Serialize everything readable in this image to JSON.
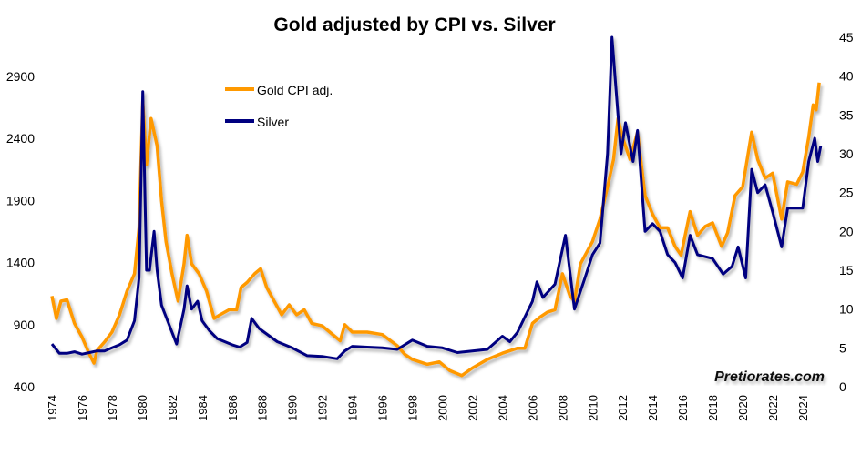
{
  "chart_data": {
    "type": "line",
    "title": "Gold adjusted by CPI vs. Silver",
    "xlabel": "",
    "ylabel_left": "",
    "ylabel_right": "",
    "x_ticks": [
      "1974",
      "1976",
      "1978",
      "1980",
      "1982",
      "1984",
      "1986",
      "1988",
      "1990",
      "1992",
      "1994",
      "1996",
      "1998",
      "2000",
      "2002",
      "2004",
      "2006",
      "2008",
      "2010",
      "2012",
      "2014",
      "2016",
      "2018",
      "2020",
      "2022",
      "2024"
    ],
    "y_left_ticks": [
      "400",
      "900",
      "1400",
      "1900",
      "2400",
      "2900"
    ],
    "y_right_ticks": [
      "0",
      "5",
      "10",
      "15",
      "20",
      "25",
      "30",
      "35",
      "40",
      "45"
    ],
    "y_left_lim": [
      400,
      3200
    ],
    "y_right_lim": [
      0,
      45
    ],
    "grid": false,
    "legend_placement": "top-left",
    "watermark": "Pretiorates.com",
    "colors": {
      "gold": "#FF9900",
      "silver": "#000080"
    },
    "series": [
      {
        "name": "Gold CPI adj.",
        "axis": "left",
        "x": [
          1974.0,
          1974.3,
          1974.6,
          1975.0,
          1975.5,
          1976.0,
          1976.5,
          1976.8,
          1977.0,
          1977.5,
          1978.0,
          1978.5,
          1979.0,
          1979.5,
          1979.8,
          1980.05,
          1980.3,
          1980.6,
          1981.0,
          1981.3,
          1981.6,
          1982.0,
          1982.4,
          1982.8,
          1983.0,
          1983.3,
          1983.8,
          1984.3,
          1984.8,
          1985.2,
          1985.8,
          1986.3,
          1986.6,
          1987.0,
          1987.5,
          1987.9,
          1988.3,
          1988.8,
          1989.3,
          1989.8,
          1990.3,
          1990.8,
          1991.3,
          1992.0,
          1992.5,
          1993.2,
          1993.5,
          1994.0,
          1995.0,
          1996.0,
          1997.0,
          1997.5,
          1998.0,
          1999.0,
          1999.8,
          2000.5,
          2001.3,
          2002.0,
          2003.0,
          2004.0,
          2005.0,
          2005.5,
          2006.0,
          2006.5,
          2007.0,
          2007.5,
          2008.0,
          2008.5,
          2008.8,
          2009.2,
          2010.0,
          2010.5,
          2011.0,
          2011.4,
          2011.7,
          2012.0,
          2012.5,
          2013.0,
          2013.5,
          2014.0,
          2014.5,
          2015.0,
          2015.5,
          2015.9,
          2016.5,
          2017.0,
          2017.5,
          2018.0,
          2018.6,
          2019.0,
          2019.5,
          2020.0,
          2020.6,
          2021.0,
          2021.5,
          2022.0,
          2022.6,
          2023.0,
          2023.6,
          2024.0,
          2024.4,
          2024.7,
          2024.9,
          2025.1
        ],
        "values": [
          1130,
          950,
          1090,
          1100,
          910,
          800,
          660,
          590,
          690,
          760,
          840,
          980,
          1170,
          1310,
          1680,
          2700,
          2190,
          2560,
          2340,
          1900,
          1570,
          1310,
          1090,
          1390,
          1620,
          1390,
          1310,
          1170,
          950,
          980,
          1020,
          1020,
          1200,
          1240,
          1310,
          1350,
          1200,
          1090,
          980,
          1060,
          980,
          1020,
          910,
          890,
          840,
          770,
          900,
          840,
          840,
          820,
          730,
          660,
          620,
          580,
          600,
          530,
          490,
          550,
          620,
          670,
          710,
          710,
          910,
          960,
          1000,
          1020,
          1310,
          1130,
          1090,
          1390,
          1570,
          1750,
          2010,
          2230,
          2560,
          2410,
          2230,
          2450,
          1940,
          1790,
          1680,
          1680,
          1530,
          1460,
          1810,
          1620,
          1690,
          1720,
          1530,
          1640,
          1940,
          2010,
          2450,
          2230,
          2080,
          2120,
          1750,
          2050,
          2030,
          2130,
          2410,
          2670,
          2630,
          2850
        ]
      },
      {
        "name": "Silver",
        "axis": "right",
        "x": [
          1974.0,
          1974.5,
          1975.0,
          1975.5,
          1976.0,
          1976.5,
          1977.0,
          1977.5,
          1978.0,
          1978.5,
          1979.0,
          1979.5,
          1979.8,
          1980.05,
          1980.3,
          1980.5,
          1980.8,
          1981.0,
          1981.3,
          1981.7,
          1982.3,
          1982.8,
          1983.0,
          1983.3,
          1983.7,
          1984.0,
          1984.5,
          1985.0,
          1986.0,
          1986.5,
          1987.0,
          1987.3,
          1987.8,
          1988.5,
          1989.0,
          1990.0,
          1991.0,
          1992.0,
          1993.0,
          1993.5,
          1994.0,
          1995.0,
          1996.0,
          1997.0,
          1998.0,
          1999.0,
          2000.0,
          2001.0,
          2002.0,
          2003.0,
          2004.0,
          2004.5,
          2005.0,
          2006.0,
          2006.3,
          2006.7,
          2007.5,
          2008.2,
          2008.8,
          2009.5,
          2010.0,
          2010.5,
          2011.0,
          2011.3,
          2011.7,
          2011.9,
          2012.2,
          2012.7,
          2013.0,
          2013.5,
          2014.0,
          2014.5,
          2015.0,
          2015.5,
          2016.0,
          2016.5,
          2017.0,
          2018.0,
          2018.7,
          2019.3,
          2019.7,
          2020.2,
          2020.6,
          2021.0,
          2021.5,
          2022.0,
          2022.6,
          2023.0,
          2023.5,
          2024.0,
          2024.4,
          2024.8,
          2025.0,
          2025.2
        ],
        "values": [
          5.5,
          4.3,
          4.3,
          4.5,
          4.2,
          4.4,
          4.6,
          4.6,
          5.0,
          5.4,
          6.0,
          8.5,
          14,
          38,
          15,
          15,
          20,
          15,
          10.5,
          8.5,
          5.5,
          10,
          13,
          10,
          11,
          8.5,
          7.2,
          6.2,
          5.4,
          5.1,
          5.7,
          8.8,
          7.5,
          6.5,
          5.8,
          5.0,
          4.0,
          3.9,
          3.6,
          4.6,
          5.2,
          5.1,
          5.0,
          4.8,
          6.0,
          5.2,
          5.0,
          4.4,
          4.6,
          4.8,
          6.5,
          5.8,
          7.0,
          11,
          13.5,
          11.5,
          13.2,
          19.5,
          10,
          14,
          17,
          18.5,
          30,
          45,
          35,
          30,
          34,
          29,
          33,
          20,
          21,
          20,
          17,
          16,
          14,
          19.5,
          17,
          16.5,
          14.5,
          15.5,
          18,
          14,
          28,
          25,
          26,
          22.5,
          18,
          23,
          23,
          23,
          29,
          32,
          29,
          31
        ]
      }
    ]
  }
}
